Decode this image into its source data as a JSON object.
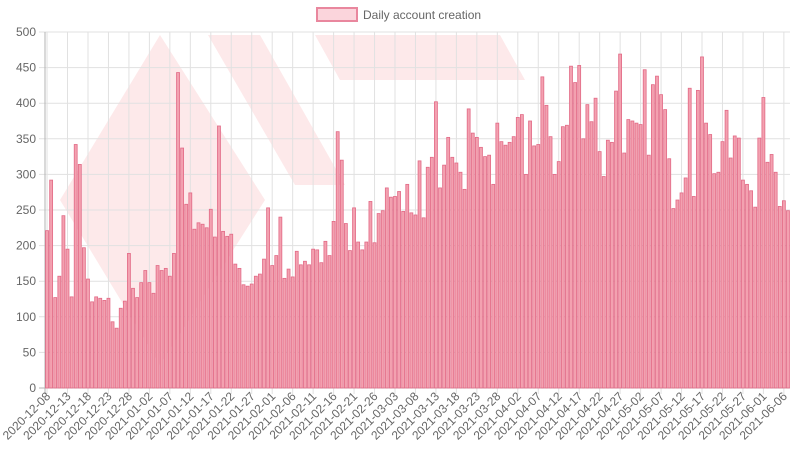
{
  "colors": {
    "bar_fill": "#f3a1b0",
    "bar_stroke": "#e26a86",
    "legend_fill": "#fbd5dc",
    "legend_stroke": "#e9879e",
    "grid": "#e1e1e1",
    "axis": "#b3b3b3",
    "text": "#666666",
    "watermark": "#fde9ea"
  },
  "chart_data": {
    "type": "bar",
    "title": "",
    "xlabel": "",
    "ylabel": "",
    "ylim": [
      0,
      500
    ],
    "yticks": [
      0,
      50,
      100,
      150,
      200,
      250,
      300,
      350,
      400,
      450,
      500
    ],
    "grid": true,
    "legend_position": "top-center",
    "x_tick_labels": [
      "2020-12-08",
      "2020-12-13",
      "2020-12-18",
      "2020-12-23",
      "2020-12-28",
      "2021-01-02",
      "2021-01-07",
      "2021-01-12",
      "2021-01-17",
      "2021-01-22",
      "2021-01-27",
      "2021-02-01",
      "2021-02-06",
      "2021-02-11",
      "2021-02-16",
      "2021-02-21",
      "2021-02-26",
      "2021-03-03",
      "2021-03-08",
      "2021-03-13",
      "2021-03-18",
      "2021-03-23",
      "2021-03-28",
      "2021-04-02",
      "2021-04-07",
      "2021-04-12",
      "2021-04-17",
      "2021-04-22",
      "2021-04-27",
      "2021-05-02",
      "2021-05-07",
      "2021-05-12",
      "2021-05-17",
      "2021-05-22",
      "2021-05-27",
      "2021-06-01",
      "2021-06-06"
    ],
    "series": [
      {
        "name": "Daily account creation",
        "start_date": "2020-12-08",
        "values": [
          221,
          292,
          127,
          157,
          242,
          195,
          128,
          342,
          314,
          197,
          153,
          121,
          128,
          126,
          123,
          126,
          93,
          84,
          112,
          122,
          189,
          140,
          127,
          148,
          165,
          148,
          133,
          172,
          165,
          168,
          157,
          189,
          443,
          337,
          258,
          274,
          223,
          232,
          230,
          225,
          251,
          212,
          368,
          220,
          213,
          216,
          174,
          168,
          145,
          143,
          146,
          157,
          160,
          181,
          253,
          172,
          186,
          240,
          154,
          167,
          156,
          192,
          173,
          178,
          173,
          195,
          194,
          176,
          206,
          186,
          234,
          360,
          320,
          231,
          193,
          253,
          205,
          194,
          205,
          262,
          204,
          245,
          249,
          281,
          268,
          269,
          276,
          248,
          286,
          246,
          243,
          319,
          239,
          310,
          324,
          402,
          281,
          313,
          352,
          324,
          316,
          303,
          279,
          392,
          358,
          352,
          338,
          325,
          327,
          286,
          372,
          346,
          341,
          345,
          353,
          380,
          384,
          300,
          375,
          340,
          342,
          437,
          397,
          353,
          300,
          318,
          367,
          369,
          452,
          429,
          453,
          350,
          398,
          374,
          407,
          332,
          297,
          348,
          345,
          417,
          469,
          330,
          377,
          375,
          372,
          370,
          447,
          327,
          426,
          438,
          412,
          391,
          322,
          252,
          264,
          274,
          295,
          421,
          269,
          418,
          465,
          372,
          356,
          301,
          303,
          346,
          390,
          323,
          354,
          351,
          292,
          286,
          277,
          254,
          351,
          408,
          317,
          328,
          303,
          255,
          263,
          249
        ]
      }
    ]
  }
}
